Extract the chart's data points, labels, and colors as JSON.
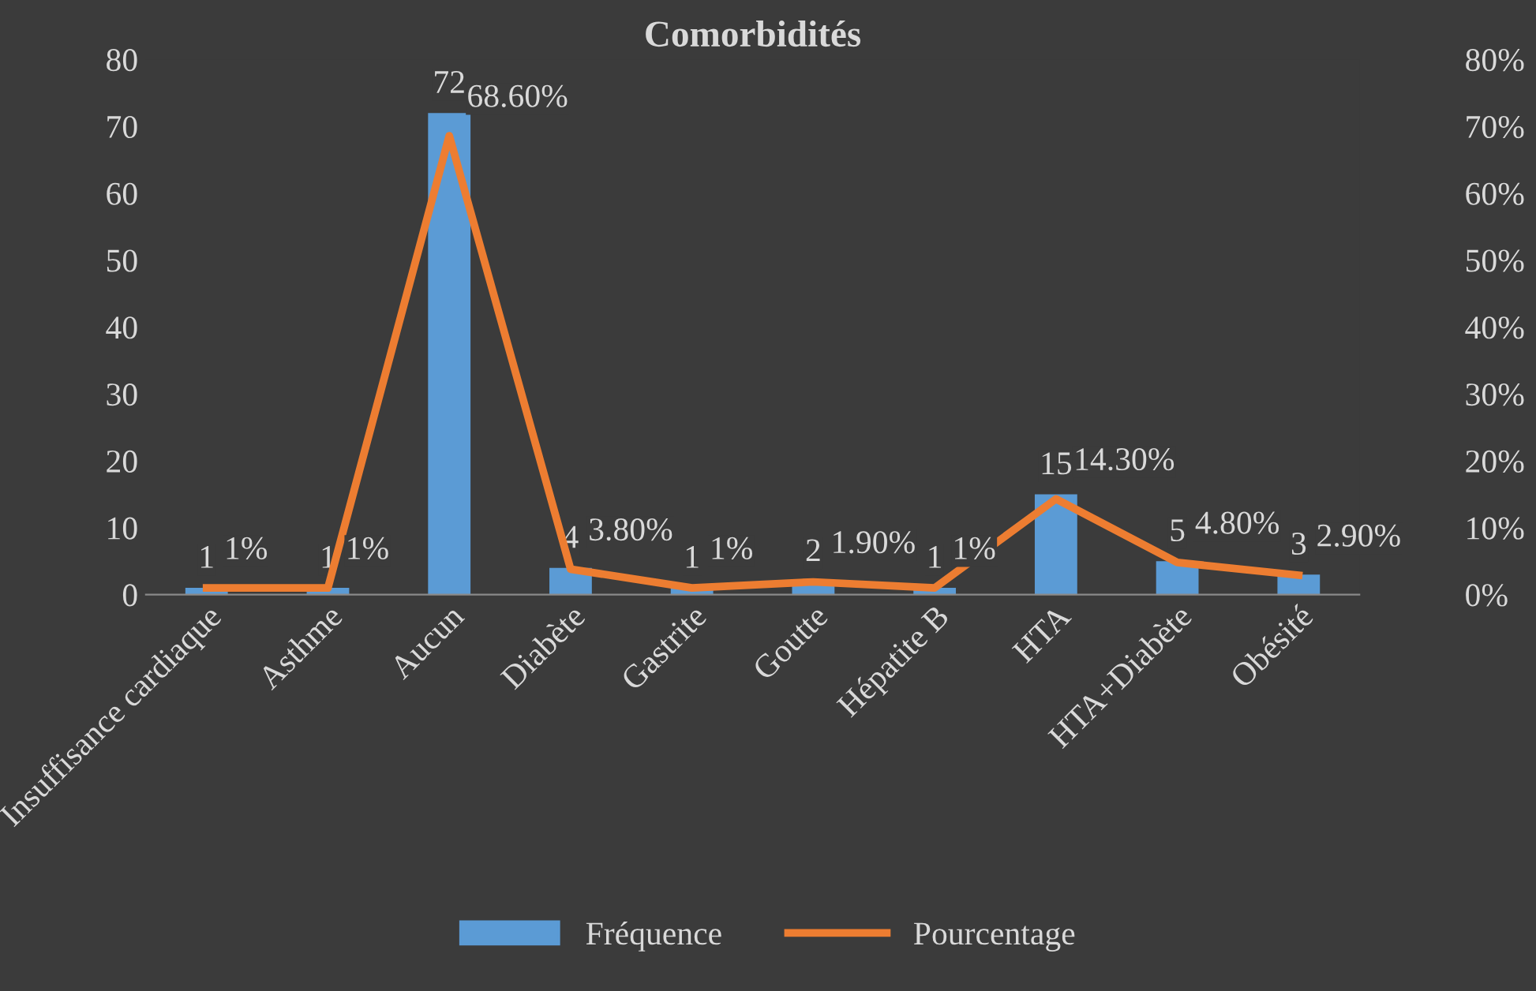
{
  "chart_data": {
    "type": "bar",
    "title": "Comorbidités",
    "categories": [
      "Insuffisance cardiaque",
      "Asthme",
      "Aucun",
      "Diabète",
      "Gastrite",
      "Goutte",
      "Hépatite B",
      "HTA",
      "HTA+Diabète",
      "Obésité"
    ],
    "series": [
      {
        "name": "Fréquence",
        "color": "#5b9bd5",
        "values": [
          1,
          1,
          72,
          4,
          1,
          2,
          1,
          15,
          5,
          3
        ],
        "value_labels": [
          "1",
          "1",
          "72",
          "4",
          "1",
          "2",
          "1",
          "15",
          "5",
          "3"
        ]
      },
      {
        "name": "Pourcentage",
        "type": "line",
        "axis": "y2",
        "color": "#ed7d31",
        "values": [
          1,
          1,
          68.6,
          3.8,
          1,
          1.9,
          1,
          14.3,
          4.8,
          2.9
        ],
        "value_labels": [
          "1%",
          "1%",
          "68.60%",
          "3.80%",
          "1%",
          "1.90%",
          "1%",
          "14.30%",
          "4.80%",
          "2.90%"
        ]
      }
    ],
    "ylim": [
      0,
      80
    ],
    "yticks": [
      0,
      10,
      20,
      30,
      40,
      50,
      60,
      70,
      80
    ],
    "y2lim": [
      0,
      80
    ],
    "y2ticks": [
      {
        "value": 0,
        "label": "0%"
      },
      {
        "value": 10,
        "label": "10%"
      },
      {
        "value": 20,
        "label": "20%"
      },
      {
        "value": 30,
        "label": "30%"
      },
      {
        "value": 40,
        "label": "40%"
      },
      {
        "value": 50,
        "label": "50%"
      },
      {
        "value": 60,
        "label": "60%"
      },
      {
        "value": 70,
        "label": "70%"
      },
      {
        "value": 80,
        "label": "80%"
      }
    ],
    "legend": "bottom",
    "marker": "none",
    "line_style": "solid"
  }
}
